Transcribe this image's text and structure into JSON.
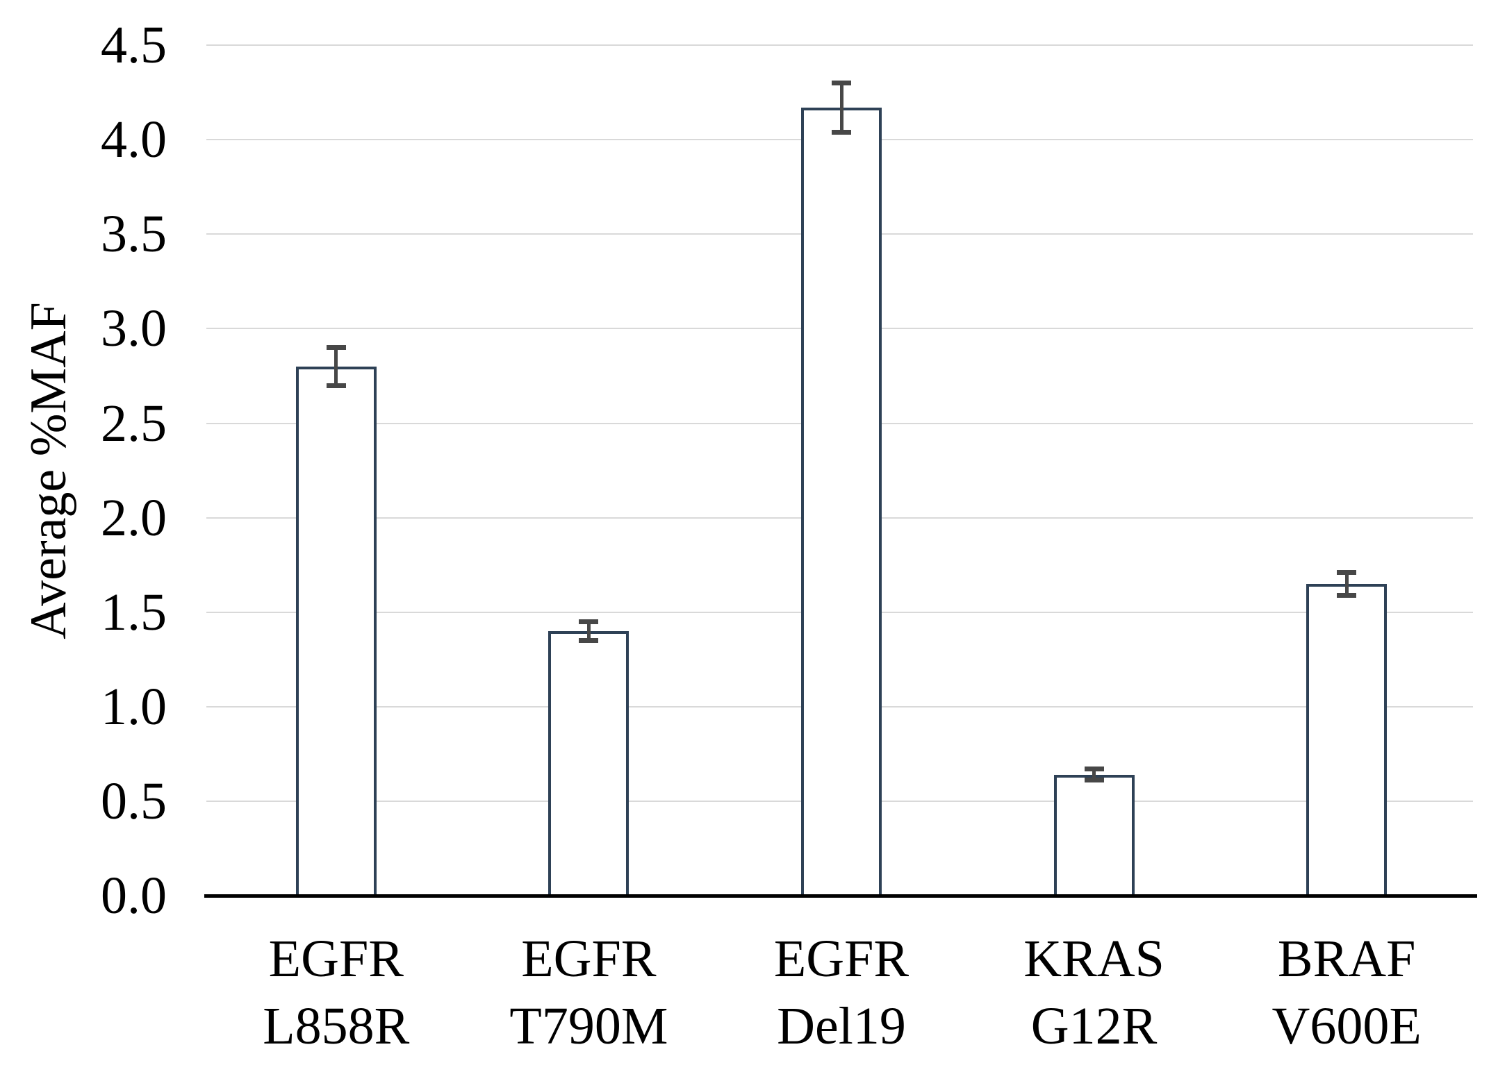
{
  "chart_data": {
    "type": "bar",
    "title": "",
    "xlabel": "",
    "ylabel": "Average %MAF",
    "categories": [
      [
        "EGFR",
        "L858R"
      ],
      [
        "EGFR",
        "T790M"
      ],
      [
        "EGFR",
        "Del19"
      ],
      [
        "KRAS",
        "G12R"
      ],
      [
        "BRAF",
        "V600E"
      ]
    ],
    "values": [
      2.8,
      1.4,
      4.17,
      0.64,
      1.65
    ],
    "error_bars": [
      0.1,
      0.05,
      0.13,
      0.03,
      0.06
    ],
    "ylim": [
      0.0,
      4.5
    ],
    "ytick_step": 0.5,
    "ytick_labels": [
      "0.0",
      "0.5",
      "1.0",
      "1.5",
      "2.0",
      "2.5",
      "3.0",
      "3.5",
      "4.0",
      "4.5"
    ],
    "grid": true,
    "legend": "none",
    "bar_fill": "#ffffff",
    "bar_border_color": "#2e4156",
    "error_bar_color": "#474747",
    "gridline_color": "#d9d9d9",
    "axis_color": "#000000",
    "text_color": "#000000"
  }
}
